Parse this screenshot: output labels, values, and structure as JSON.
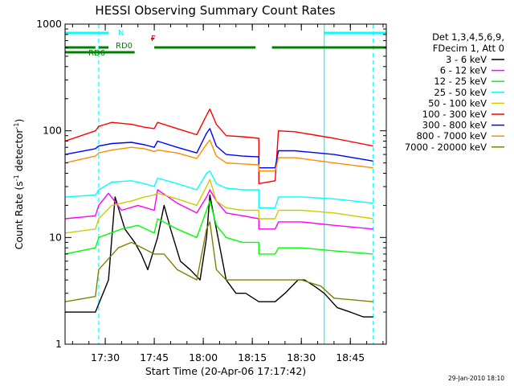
{
  "chart_data": {
    "type": "line",
    "title": "HESSI Observing Summary Count Rates",
    "xlabel": "Start Time (20-Apr-06 17:17:42)",
    "ylabel_main": "Count Rate (s",
    "ylabel_sup1": "-1",
    "ylabel_mid": " detector",
    "ylabel_sup2": "-1",
    "ylabel_end": ")",
    "yscale": "log",
    "ylim": [
      1,
      1000
    ],
    "xlim": [
      "17:17:42",
      "18:56:00"
    ],
    "x_ticks": [
      "17:30",
      "17:45",
      "18:00",
      "18:15",
      "18:30",
      "18:45"
    ],
    "y_ticks": [
      "1000",
      "100",
      "10",
      "1"
    ],
    "timestamp": "29-Jan-2010 18:10",
    "legend_header": [
      "Det 1,3,4,5,6,9,",
      "FDecim 1, Att 0"
    ],
    "series": [
      {
        "name": "3 - 6 keV",
        "color": "#000000",
        "x": [
          "17:17:42",
          "17:27",
          "17:31",
          "17:33",
          "17:36",
          "17:39",
          "17:41",
          "17:43",
          "17:46",
          "17:48",
          "17:50",
          "17:53",
          "17:56",
          "17:59",
          "18:01",
          "18:02",
          "18:04",
          "18:07",
          "18:10",
          "18:13",
          "18:17",
          "18:22",
          "18:25",
          "18:29",
          "18:31",
          "18:34",
          "18:37",
          "18:41",
          "18:45",
          "18:49",
          "18:52"
        ],
        "y": [
          2,
          2,
          4,
          24,
          12,
          9,
          7,
          5,
          10,
          20,
          12,
          6,
          5,
          4,
          10,
          25,
          12,
          4,
          3,
          3,
          2.5,
          2.5,
          3,
          4,
          4,
          3.5,
          3,
          2.2,
          2,
          1.8,
          1.8
        ]
      },
      {
        "name": "6 - 12 keV",
        "color": "#ff00ff",
        "x": [
          "17:17:42",
          "17:27",
          "17:28",
          "17:31",
          "17:35",
          "17:40",
          "17:45",
          "17:46",
          "17:52",
          "17:58",
          "18:01",
          "18:02",
          "18:04",
          "18:07",
          "18:12",
          "18:17",
          "18:17",
          "18:22",
          "18:23",
          "18:30",
          "18:40",
          "18:52"
        ],
        "y": [
          15,
          16,
          20,
          26,
          18,
          20,
          18,
          28,
          21,
          17,
          24,
          28,
          22,
          17,
          16,
          15,
          12,
          12,
          14,
          14,
          13,
          12
        ]
      },
      {
        "name": "12 - 25 keV",
        "color": "#00ff00",
        "x": [
          "17:17:42",
          "17:27",
          "17:28",
          "17:35",
          "17:40",
          "17:45",
          "17:46",
          "17:52",
          "17:58",
          "18:01",
          "18:02",
          "18:04",
          "18:07",
          "18:12",
          "18:17",
          "18:17",
          "18:22",
          "18:23",
          "18:30",
          "18:40",
          "18:52"
        ],
        "y": [
          7,
          8,
          10,
          12,
          13,
          11,
          15,
          12,
          10,
          18,
          22,
          13,
          10,
          9,
          9,
          7,
          7,
          8,
          8,
          7.5,
          7
        ]
      },
      {
        "name": "25 - 50 keV",
        "color": "#00ffff",
        "x": [
          "17:17:42",
          "17:27",
          "17:28",
          "17:32",
          "17:38",
          "17:42",
          "17:45",
          "17:46",
          "17:52",
          "17:58",
          "18:01",
          "18:02",
          "18:04",
          "18:07",
          "18:12",
          "18:17",
          "18:17",
          "18:22",
          "18:23",
          "18:30",
          "18:40",
          "18:52"
        ],
        "y": [
          24,
          25,
          28,
          33,
          34,
          32,
          30,
          36,
          32,
          28,
          40,
          42,
          32,
          29,
          28,
          28,
          19,
          19,
          24,
          24,
          23,
          21
        ]
      },
      {
        "name": "50 - 100 keV",
        "color": "#cccc00",
        "x": [
          "17:17:42",
          "17:27",
          "17:28",
          "17:32",
          "17:38",
          "17:42",
          "17:45",
          "17:46",
          "17:52",
          "17:58",
          "18:01",
          "18:02",
          "18:04",
          "18:07",
          "18:12",
          "18:17",
          "18:17",
          "18:22",
          "18:23",
          "18:30",
          "18:40",
          "18:52"
        ],
        "y": [
          11,
          12,
          15,
          20,
          22,
          24,
          25,
          26,
          23,
          20,
          30,
          35,
          22,
          19,
          18,
          18,
          15,
          15,
          18,
          18,
          17,
          15
        ]
      },
      {
        "name": "100 - 300 keV",
        "color": "#ff0000",
        "x": [
          "17:17:42",
          "17:27",
          "17:28",
          "17:32",
          "17:38",
          "17:42",
          "17:45",
          "17:46",
          "17:52",
          "17:58",
          "18:01",
          "18:02",
          "18:04",
          "18:07",
          "18:12",
          "18:17",
          "18:17",
          "18:22",
          "18:23",
          "18:28",
          "18:40",
          "18:52"
        ],
        "y": [
          80,
          100,
          110,
          120,
          115,
          108,
          105,
          120,
          105,
          92,
          140,
          160,
          115,
          90,
          88,
          85,
          32,
          34,
          100,
          98,
          85,
          72
        ]
      },
      {
        "name": "300 - 800 keV",
        "color": "#0000ff",
        "x": [
          "17:17:42",
          "17:27",
          "17:28",
          "17:32",
          "17:38",
          "17:42",
          "17:45",
          "17:46",
          "17:52",
          "17:58",
          "18:01",
          "18:02",
          "18:04",
          "18:07",
          "18:12",
          "18:17",
          "18:17",
          "18:22",
          "18:23",
          "18:28",
          "18:40",
          "18:52"
        ],
        "y": [
          60,
          68,
          72,
          76,
          78,
          74,
          70,
          80,
          70,
          62,
          95,
          105,
          72,
          60,
          58,
          57,
          45,
          45,
          65,
          65,
          60,
          52
        ]
      },
      {
        "name": "800 - 7000 keV",
        "color": "#ff8c00",
        "x": [
          "17:17:42",
          "17:27",
          "17:28",
          "17:32",
          "17:38",
          "17:42",
          "17:45",
          "17:46",
          "17:52",
          "17:58",
          "18:01",
          "18:02",
          "18:04",
          "18:07",
          "18:12",
          "18:17",
          "18:17",
          "18:22",
          "18:23",
          "18:28",
          "18:40",
          "18:52"
        ],
        "y": [
          50,
          58,
          62,
          66,
          70,
          68,
          64,
          66,
          62,
          55,
          75,
          82,
          58,
          50,
          49,
          48,
          42,
          42,
          56,
          56,
          50,
          45
        ]
      },
      {
        "name": "7000 - 20000 keV",
        "color": "#808000",
        "x": [
          "17:17:42",
          "17:27",
          "17:28",
          "17:34",
          "17:38",
          "17:45",
          "17:48",
          "17:52",
          "17:58",
          "18:01",
          "18:02",
          "18:04",
          "18:07",
          "18:12",
          "18:17",
          "18:22",
          "18:25",
          "18:30",
          "18:36",
          "18:40",
          "18:52"
        ],
        "y": [
          2.5,
          2.8,
          5,
          8,
          9,
          7,
          7,
          5,
          4,
          12,
          14,
          5,
          4,
          4,
          4,
          4,
          4,
          4,
          3.5,
          2.7,
          2.5
        ]
      }
    ],
    "annotations": {
      "flags": [
        {
          "label": "N",
          "color": "#00ffff",
          "segments": [
            [
              "17:17:42",
              "17:31"
            ],
            [
              "18:37",
              "18:56"
            ]
          ]
        },
        {
          "label": "F",
          "color": "#ff0000",
          "segments": [
            [
              "17:44",
              "17:45"
            ]
          ]
        },
        {
          "label": "RD0",
          "color": "#008000",
          "segments": [
            [
              "17:17:42",
              "17:27"
            ],
            [
              "17:28",
              "17:31"
            ],
            [
              "17:45",
              "18:16"
            ],
            [
              "18:21",
              "18:56"
            ]
          ]
        },
        {
          "label": "RD6",
          "color": "#008000",
          "segments": [
            [
              "17:17:42",
              "17:39"
            ]
          ]
        }
      ],
      "solid_vlines": [
        "17:17:42",
        "18:37"
      ],
      "dashed_vlines": [
        "17:28",
        "18:52"
      ]
    }
  }
}
